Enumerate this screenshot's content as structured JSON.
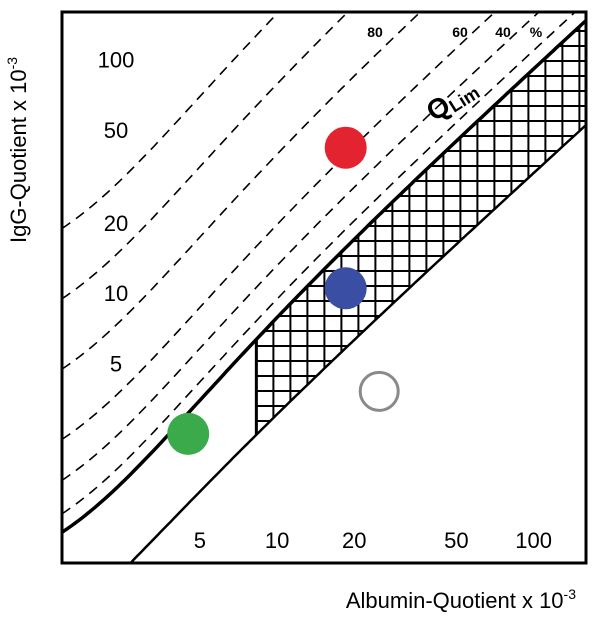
{
  "chart_data": {
    "type": "scatter",
    "title": "",
    "xlabel": "Albumin-Quotient x 10",
    "xlabel_exp": "-3",
    "ylabel": "IgG-Quotient x 10",
    "ylabel_exp": "-3",
    "x_scale": "log",
    "y_scale": "log",
    "xlim": [
      1.45,
      160
    ],
    "ylim": [
      0.7,
      160
    ],
    "x_ticks": [
      {
        "value": 5,
        "label": "5"
      },
      {
        "value": 10,
        "label": "10"
      },
      {
        "value": 20,
        "label": "20"
      },
      {
        "value": 50,
        "label": "50"
      },
      {
        "value": 100,
        "label": "100"
      }
    ],
    "y_ticks": [
      {
        "value": 5,
        "label": "5"
      },
      {
        "value": 10,
        "label": "10"
      },
      {
        "value": 20,
        "label": "20"
      },
      {
        "value": 50,
        "label": "50"
      },
      {
        "value": 100,
        "label": "100"
      }
    ],
    "intrathecal_fraction_lines": [
      {
        "label": "80",
        "factor": 5
      },
      {
        "label": "60",
        "factor": 2.5
      },
      {
        "label": "40",
        "factor": 1.67
      },
      {
        "label": "%",
        "factor": 1.2
      }
    ],
    "boundary_label": "QLim",
    "points": [
      {
        "x": 18.5,
        "y": 42,
        "color": "#e3232f",
        "style": "filled"
      },
      {
        "x": 18.5,
        "y": 10.5,
        "color": "#3a4ea3",
        "style": "filled"
      },
      {
        "x": 4.5,
        "y": 2.5,
        "color": "#3aaa4a",
        "style": "filled"
      },
      {
        "x": 25,
        "y": 3.8,
        "color": "#8a8a8a",
        "style": "hollow"
      }
    ],
    "grid": false
  }
}
